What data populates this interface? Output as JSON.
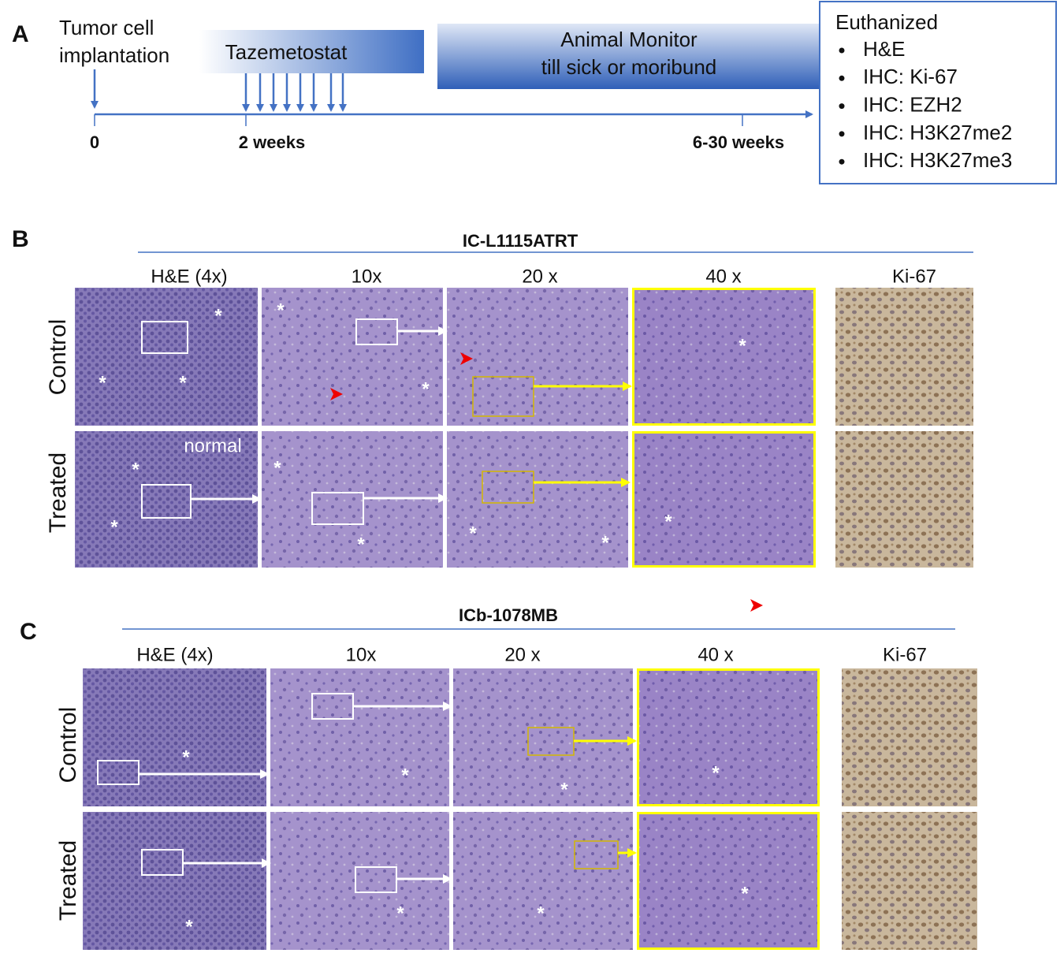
{
  "panel_a": {
    "label": "A",
    "implantation": [
      "Tumor cell",
      "implantation"
    ],
    "treatment": "Tazemetostat",
    "monitor": [
      "Animal Monitor",
      "till sick or moribund"
    ],
    "timepoints": [
      "0",
      "2 weeks",
      "6-30 weeks"
    ],
    "endpoint": {
      "title": "Euthanized",
      "items": [
        "H&E",
        "IHC: Ki-67",
        "IHC: EZH2",
        "IHC: H3K27me2",
        "IHC: H3K27me3"
      ]
    }
  },
  "panel_b": {
    "label": "B",
    "model": "IC-L1115ATRT",
    "columns": [
      "H&E  (4x)",
      "10x",
      "20 x",
      "40 x",
      "Ki-67"
    ],
    "rows": [
      "Control",
      "Treated"
    ],
    "annotations": {
      "normal": "normal",
      "asterisk": "*"
    }
  },
  "panel_c": {
    "label": "C",
    "model": "ICb-1078MB",
    "columns": [
      "H&E  (4x)",
      "10x",
      "20 x",
      "40 x",
      "Ki-67"
    ],
    "rows": [
      "Control",
      "Treated"
    ],
    "annotations": {
      "asterisk": "*"
    }
  }
}
